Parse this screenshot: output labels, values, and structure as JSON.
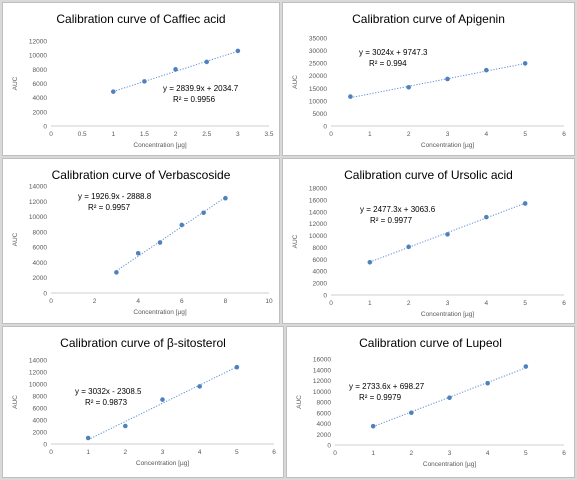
{
  "chart_data": [
    {
      "type": "scatter",
      "title": "Calibration curve of  Caffiec acid",
      "xlabel": "Concentration [µg]",
      "ylabel": "AUC",
      "xlim": [
        0,
        3.5
      ],
      "xticks": [
        "0",
        "0.5",
        "1",
        "1.5",
        "2",
        "2.5",
        "3",
        "3.5"
      ],
      "ylim": [
        0,
        12000
      ],
      "yticks": [
        "0",
        "2000",
        "4000",
        "6000",
        "8000",
        "10000",
        "12000"
      ],
      "x": [
        1,
        1.5,
        2,
        2.5,
        3
      ],
      "y": [
        4850,
        6300,
        8000,
        9050,
        10600
      ],
      "trendline": {
        "slope": 2839.9,
        "intercept": 2034.7
      },
      "equation": "y = 2839.9x + 2034.7",
      "r2": "R² = 0.9956"
    },
    {
      "type": "scatter",
      "title": "Calibration curve of Apigenin",
      "xlabel": "Concentration [µg]",
      "ylabel": "AUC",
      "xlim": [
        0,
        6
      ],
      "xticks": [
        "0",
        "1",
        "2",
        "3",
        "4",
        "5",
        "6"
      ],
      "ylim": [
        0,
        35000
      ],
      "yticks": [
        "0",
        "5000",
        "10000",
        "15000",
        "20000",
        "25000",
        "30000",
        "35000"
      ],
      "x": [
        0.5,
        2,
        3,
        4,
        5
      ],
      "y": [
        11700,
        15400,
        18700,
        22200,
        24900
      ],
      "trendline": {
        "slope": 3024,
        "intercept": 9747.3
      },
      "equation": "y = 3024x + 9747.3",
      "r2": "R² = 0.994"
    },
    {
      "type": "scatter",
      "title": "Calibration curve of Verbascoside",
      "xlabel": "Concentration [µg]",
      "ylabel": "AUC",
      "xlim": [
        0,
        10
      ],
      "xticks": [
        "0",
        "2",
        "4",
        "6",
        "8",
        "10"
      ],
      "ylim": [
        0,
        14000
      ],
      "yticks": [
        "0",
        "2000",
        "4000",
        "6000",
        "8000",
        "10000",
        "12000",
        "14000"
      ],
      "x": [
        3,
        4,
        5,
        6,
        7,
        8
      ],
      "y": [
        2700,
        5200,
        6600,
        8900,
        10500,
        12400
      ],
      "trendline": {
        "slope": 1926.9,
        "intercept": -2888.8
      },
      "equation": "y = 1926.9x - 2888.8",
      "r2": "R² = 0.9957"
    },
    {
      "type": "scatter",
      "title": "Calibration curve of Ursolic acid",
      "xlabel": "Concentration [µg]",
      "ylabel": "AUC",
      "xlim": [
        0,
        6
      ],
      "xticks": [
        "0",
        "1",
        "2",
        "3",
        "4",
        "5",
        "6"
      ],
      "ylim": [
        0,
        18000
      ],
      "yticks": [
        "0",
        "2000",
        "4000",
        "6000",
        "8000",
        "10000",
        "12000",
        "14000",
        "16000",
        "18000"
      ],
      "x": [
        1,
        2,
        3,
        4,
        5
      ],
      "y": [
        5500,
        8100,
        10200,
        13100,
        15400
      ],
      "trendline": {
        "slope": 2477.3,
        "intercept": 3063.6
      },
      "equation": "y = 2477.3x + 3063.6",
      "r2": "R² = 0.9977"
    },
    {
      "type": "scatter",
      "title": "Calibration curve of β-sitosterol",
      "xlabel": "Concentration [µg]",
      "ylabel": "AUC",
      "xlim": [
        0,
        6
      ],
      "xticks": [
        "0",
        "1",
        "2",
        "3",
        "4",
        "5",
        "6"
      ],
      "ylim": [
        0,
        14000
      ],
      "yticks": [
        "0",
        "2000",
        "4000",
        "6000",
        "8000",
        "10000",
        "12000",
        "14000"
      ],
      "x": [
        1,
        2,
        3,
        4,
        5
      ],
      "y": [
        1000,
        3000,
        7400,
        9600,
        12800
      ],
      "trendline": {
        "slope": 3032,
        "intercept": -2308.5
      },
      "equation": "y = 3032x - 2308.5",
      "r2": "R² = 0.9873"
    },
    {
      "type": "scatter",
      "title": "Calibration curve of Lupeol",
      "xlabel": "Concentration [µg]",
      "ylabel": "AUC",
      "xlim": [
        0,
        6
      ],
      "xticks": [
        "0",
        "1",
        "2",
        "3",
        "4",
        "5",
        "6"
      ],
      "ylim": [
        0,
        16000
      ],
      "yticks": [
        "0",
        "2000",
        "4000",
        "6000",
        "8000",
        "10000",
        "12000",
        "14000",
        "16000"
      ],
      "x": [
        1,
        2,
        3,
        4,
        5
      ],
      "y": [
        3500,
        6000,
        8800,
        11500,
        14600
      ],
      "trendline": {
        "slope": 2733.6,
        "intercept": 698.27
      },
      "equation": "y = 2733.6x + 698.27",
      "r2": "R² = 0.9979"
    }
  ]
}
